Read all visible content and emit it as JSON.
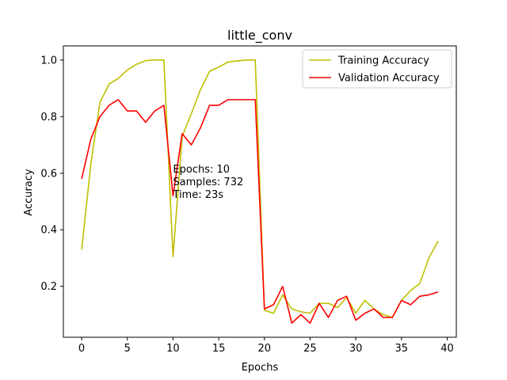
{
  "chart_data": {
    "type": "line",
    "title": "little_conv",
    "xlabel": "Epochs",
    "ylabel": "Accuracy",
    "xlim": [
      -2,
      41
    ],
    "ylim": [
      0.02,
      1.05
    ],
    "xticks": [
      0,
      5,
      10,
      15,
      20,
      25,
      30,
      35,
      40
    ],
    "yticks": [
      0.2,
      0.4,
      0.6,
      0.8,
      1.0
    ],
    "ytick_labels": [
      "0.2",
      "0.4",
      "0.6",
      "0.8",
      "1.0"
    ],
    "grid": false,
    "legend_position": "upper right",
    "x": [
      0,
      1,
      2,
      3,
      4,
      5,
      6,
      7,
      8,
      9,
      10,
      11,
      12,
      13,
      14,
      15,
      16,
      17,
      18,
      19,
      20,
      21,
      22,
      23,
      24,
      25,
      26,
      27,
      28,
      29,
      30,
      31,
      32,
      33,
      34,
      35,
      36,
      37,
      38,
      39
    ],
    "series": [
      {
        "name": "Training Accuracy",
        "color": "#bfbf00",
        "values": [
          0.33,
          0.63,
          0.85,
          0.915,
          0.935,
          0.965,
          0.985,
          0.998,
          1.0,
          1.0,
          0.305,
          0.73,
          0.81,
          0.895,
          0.96,
          0.975,
          0.993,
          0.997,
          1.0,
          1.0,
          0.115,
          0.105,
          0.17,
          0.12,
          0.11,
          0.105,
          0.14,
          0.14,
          0.125,
          0.16,
          0.105,
          0.15,
          0.12,
          0.1,
          0.09,
          0.15,
          0.185,
          0.21,
          0.3,
          0.36
        ]
      },
      {
        "name": "Validation Accuracy",
        "color": "#ff0000",
        "values": [
          0.58,
          0.72,
          0.8,
          0.84,
          0.86,
          0.82,
          0.82,
          0.78,
          0.82,
          0.84,
          0.52,
          0.74,
          0.7,
          0.76,
          0.84,
          0.84,
          0.86,
          0.86,
          0.86,
          0.86,
          0.12,
          0.135,
          0.2,
          0.07,
          0.1,
          0.07,
          0.14,
          0.09,
          0.15,
          0.165,
          0.08,
          0.105,
          0.12,
          0.09,
          0.09,
          0.15,
          0.135,
          0.165,
          0.17,
          0.18
        ]
      }
    ],
    "annotation": {
      "x": 10,
      "y": 0.6,
      "lines": [
        "Epochs: 10",
        "Samples: 732",
        "Time: 23s"
      ]
    }
  }
}
